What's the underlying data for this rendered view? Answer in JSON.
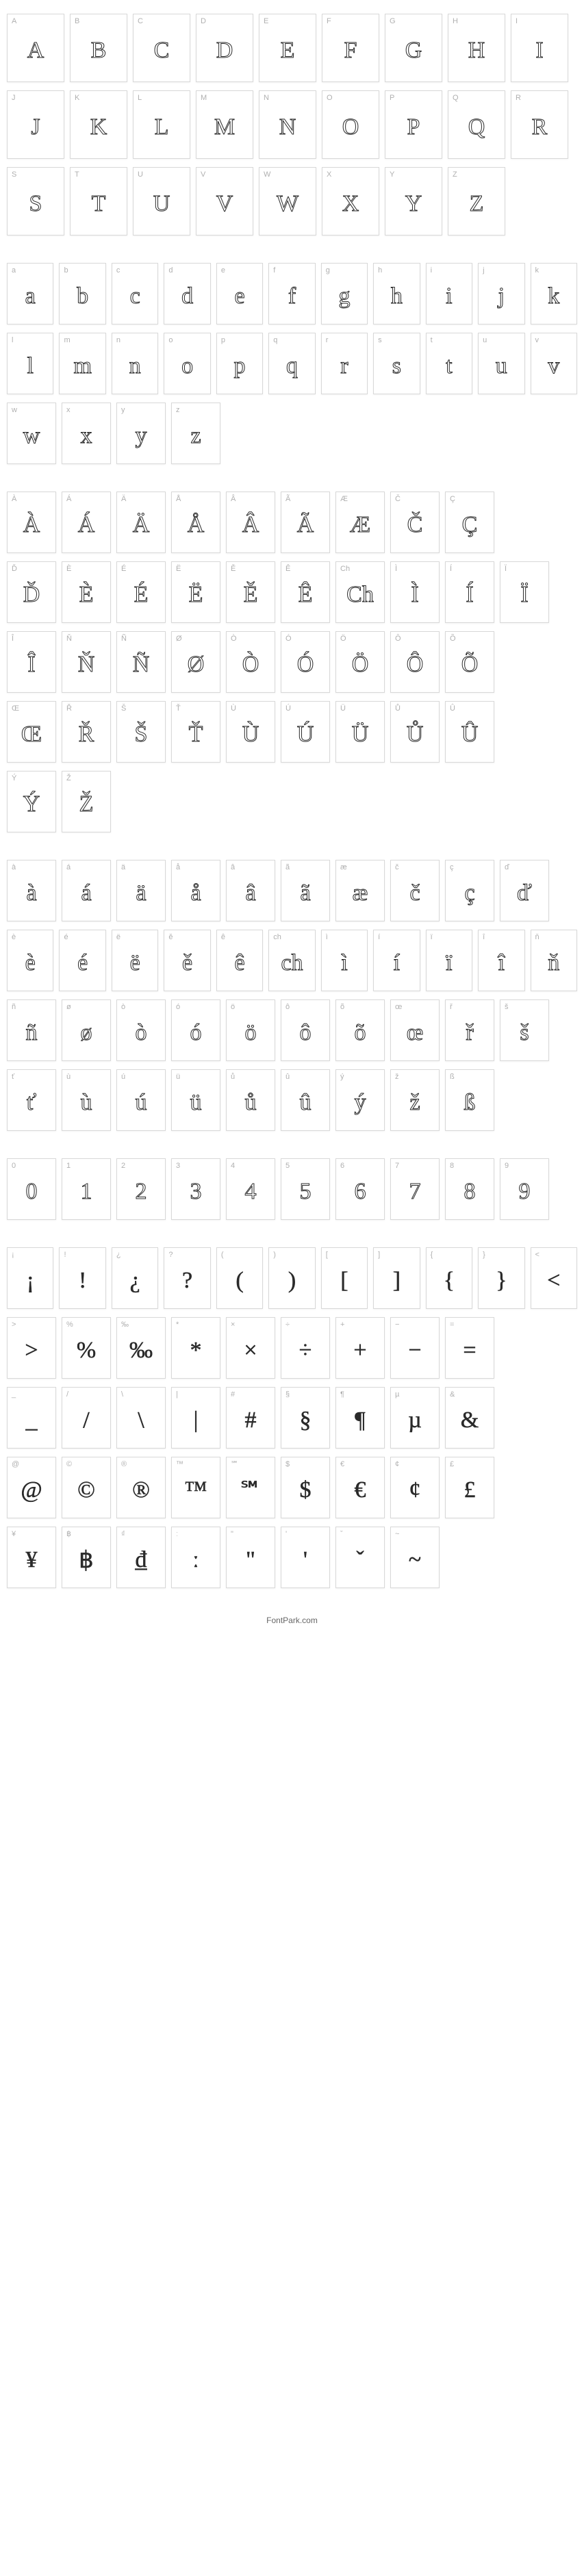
{
  "footer_text": "FontPark.com",
  "cell_styles": {
    "border_color": "#d8d8d8",
    "background_color": "#ffffff",
    "label_color": "#b0b0b0",
    "glyph_color": "#2a2a2a",
    "label_fontsize": 11,
    "glyph_fontsize": 34
  },
  "sections": [
    {
      "name": "uppercase",
      "cell_class": "w-large",
      "outlined": true,
      "rows": [
        [
          {
            "l": "A",
            "g": "A"
          },
          {
            "l": "B",
            "g": "B"
          },
          {
            "l": "C",
            "g": "C"
          },
          {
            "l": "D",
            "g": "D"
          },
          {
            "l": "E",
            "g": "E"
          },
          {
            "l": "F",
            "g": "F"
          },
          {
            "l": "G",
            "g": "G"
          },
          {
            "l": "H",
            "g": "H"
          },
          {
            "l": "I",
            "g": "I"
          }
        ],
        [
          {
            "l": "J",
            "g": "J"
          },
          {
            "l": "K",
            "g": "K"
          },
          {
            "l": "L",
            "g": "L"
          },
          {
            "l": "M",
            "g": "M"
          },
          {
            "l": "N",
            "g": "N"
          },
          {
            "l": "O",
            "g": "O"
          },
          {
            "l": "P",
            "g": "P"
          },
          {
            "l": "Q",
            "g": "Q"
          },
          {
            "l": "R",
            "g": "R"
          }
        ],
        [
          {
            "l": "S",
            "g": "S"
          },
          {
            "l": "T",
            "g": "T"
          },
          {
            "l": "U",
            "g": "U"
          },
          {
            "l": "V",
            "g": "V"
          },
          {
            "l": "W",
            "g": "W"
          },
          {
            "l": "X",
            "g": "X"
          },
          {
            "l": "Y",
            "g": "Y"
          },
          {
            "l": "Z",
            "g": "Z"
          }
        ]
      ]
    },
    {
      "name": "lowercase",
      "cell_class": "w-med",
      "outlined": true,
      "rows": [
        [
          {
            "l": "a",
            "g": "a"
          },
          {
            "l": "b",
            "g": "b"
          },
          {
            "l": "c",
            "g": "c"
          },
          {
            "l": "d",
            "g": "d"
          },
          {
            "l": "e",
            "g": "e"
          },
          {
            "l": "f",
            "g": "f"
          },
          {
            "l": "g",
            "g": "g"
          },
          {
            "l": "h",
            "g": "h"
          },
          {
            "l": "i",
            "g": "i"
          },
          {
            "l": "j",
            "g": "j"
          },
          {
            "l": "k",
            "g": "k"
          }
        ],
        [
          {
            "l": "l",
            "g": "l"
          },
          {
            "l": "m",
            "g": "m"
          },
          {
            "l": "n",
            "g": "n"
          },
          {
            "l": "o",
            "g": "o"
          },
          {
            "l": "p",
            "g": "p"
          },
          {
            "l": "q",
            "g": "q"
          },
          {
            "l": "r",
            "g": "r"
          },
          {
            "l": "s",
            "g": "s"
          },
          {
            "l": "t",
            "g": "t"
          },
          {
            "l": "u",
            "g": "u"
          },
          {
            "l": "v",
            "g": "v"
          }
        ],
        [
          {
            "l": "w",
            "g": "w"
          },
          {
            "l": "x",
            "g": "x"
          },
          {
            "l": "y",
            "g": "y"
          },
          {
            "l": "z",
            "g": "z"
          }
        ]
      ]
    },
    {
      "name": "uppercase_accented",
      "cell_class": "w-med",
      "outlined": true,
      "rows": [
        [
          {
            "l": "À",
            "g": "À"
          },
          {
            "l": "Á",
            "g": "Á"
          },
          {
            "l": "Ä",
            "g": "Ä"
          },
          {
            "l": "Å",
            "g": "Å"
          },
          {
            "l": "Â",
            "g": "Â"
          },
          {
            "l": "Ã",
            "g": "Ã"
          },
          {
            "l": "Æ",
            "g": "Æ"
          },
          {
            "l": "Č",
            "g": "Č"
          },
          {
            "l": "Ç",
            "g": "Ç"
          }
        ],
        [
          {
            "l": "Ď",
            "g": "Ď"
          },
          {
            "l": "È",
            "g": "È"
          },
          {
            "l": "É",
            "g": "É"
          },
          {
            "l": "Ë",
            "g": "Ë"
          },
          {
            "l": "Ě",
            "g": "Ě"
          },
          {
            "l": "Ê",
            "g": "Ê"
          },
          {
            "l": "Ch",
            "g": "Ch"
          },
          {
            "l": "Ì",
            "g": "Ì"
          },
          {
            "l": "Í",
            "g": "Í"
          },
          {
            "l": "Ï",
            "g": "Ï"
          }
        ],
        [
          {
            "l": "Î",
            "g": "Î"
          },
          {
            "l": "Ň",
            "g": "Ň"
          },
          {
            "l": "Ñ",
            "g": "Ñ"
          },
          {
            "l": "Ø",
            "g": "Ø"
          },
          {
            "l": "Ò",
            "g": "Ò"
          },
          {
            "l": "Ó",
            "g": "Ó"
          },
          {
            "l": "Ö",
            "g": "Ö"
          },
          {
            "l": "Ô",
            "g": "Ô"
          },
          {
            "l": "Õ",
            "g": "Õ"
          }
        ],
        [
          {
            "l": "Œ",
            "g": "Œ"
          },
          {
            "l": "Ř",
            "g": "Ř"
          },
          {
            "l": "Š",
            "g": "Š"
          },
          {
            "l": "Ť",
            "g": "Ť"
          },
          {
            "l": "Ù",
            "g": "Ù"
          },
          {
            "l": "Ú",
            "g": "Ú"
          },
          {
            "l": "Ü",
            "g": "Ü"
          },
          {
            "l": "Ů",
            "g": "Ů"
          },
          {
            "l": "Û",
            "g": "Û"
          }
        ],
        [
          {
            "l": "Ý",
            "g": "Ý"
          },
          {
            "l": "Ž",
            "g": "Ž"
          }
        ]
      ]
    },
    {
      "name": "lowercase_accented",
      "cell_class": "w-med",
      "outlined": true,
      "rows": [
        [
          {
            "l": "à",
            "g": "à"
          },
          {
            "l": "á",
            "g": "á"
          },
          {
            "l": "ä",
            "g": "ä"
          },
          {
            "l": "å",
            "g": "å"
          },
          {
            "l": "â",
            "g": "â"
          },
          {
            "l": "ã",
            "g": "ã"
          },
          {
            "l": "æ",
            "g": "æ"
          },
          {
            "l": "č",
            "g": "č"
          },
          {
            "l": "ç",
            "g": "ç"
          },
          {
            "l": "ď",
            "g": "ď"
          }
        ],
        [
          {
            "l": "è",
            "g": "è"
          },
          {
            "l": "é",
            "g": "é"
          },
          {
            "l": "ë",
            "g": "ë"
          },
          {
            "l": "ě",
            "g": "ě"
          },
          {
            "l": "ê",
            "g": "ê"
          },
          {
            "l": "ch",
            "g": "ch"
          },
          {
            "l": "ì",
            "g": "ì"
          },
          {
            "l": "í",
            "g": "í"
          },
          {
            "l": "ï",
            "g": "ï"
          },
          {
            "l": "î",
            "g": "î"
          },
          {
            "l": "ň",
            "g": "ň"
          }
        ],
        [
          {
            "l": "ñ",
            "g": "ñ"
          },
          {
            "l": "ø",
            "g": "ø"
          },
          {
            "l": "ò",
            "g": "ò"
          },
          {
            "l": "ó",
            "g": "ó"
          },
          {
            "l": "ö",
            "g": "ö"
          },
          {
            "l": "ô",
            "g": "ô"
          },
          {
            "l": "õ",
            "g": "õ"
          },
          {
            "l": "œ",
            "g": "œ"
          },
          {
            "l": "ř",
            "g": "ř"
          },
          {
            "l": "š",
            "g": "š"
          }
        ],
        [
          {
            "l": "ť",
            "g": "ť"
          },
          {
            "l": "ù",
            "g": "ù"
          },
          {
            "l": "ú",
            "g": "ú"
          },
          {
            "l": "ü",
            "g": "ü"
          },
          {
            "l": "ů",
            "g": "ů"
          },
          {
            "l": "û",
            "g": "û"
          },
          {
            "l": "ý",
            "g": "ý"
          },
          {
            "l": "ž",
            "g": "ž"
          },
          {
            "l": "ß",
            "g": "ß"
          }
        ]
      ]
    },
    {
      "name": "numbers",
      "cell_class": "w-med",
      "outlined": true,
      "rows": [
        [
          {
            "l": "0",
            "g": "0"
          },
          {
            "l": "1",
            "g": "1"
          },
          {
            "l": "2",
            "g": "2"
          },
          {
            "l": "3",
            "g": "3"
          },
          {
            "l": "4",
            "g": "4"
          },
          {
            "l": "5",
            "g": "5"
          },
          {
            "l": "6",
            "g": "6"
          },
          {
            "l": "7",
            "g": "7"
          },
          {
            "l": "8",
            "g": "8"
          },
          {
            "l": "9",
            "g": "9"
          }
        ]
      ]
    },
    {
      "name": "symbols",
      "cell_class": "w-med",
      "outlined": false,
      "rows": [
        [
          {
            "l": "¡",
            "g": "¡"
          },
          {
            "l": "!",
            "g": "!"
          },
          {
            "l": "¿",
            "g": "¿"
          },
          {
            "l": "?",
            "g": "?"
          },
          {
            "l": "(",
            "g": "("
          },
          {
            "l": ")",
            "g": ")"
          },
          {
            "l": "[",
            "g": "["
          },
          {
            "l": "]",
            "g": "]"
          },
          {
            "l": "{",
            "g": "{"
          },
          {
            "l": "}",
            "g": "}"
          },
          {
            "l": "<",
            "g": "<"
          }
        ],
        [
          {
            "l": ">",
            "g": ">"
          },
          {
            "l": "%",
            "g": "%"
          },
          {
            "l": "‰",
            "g": "‰"
          },
          {
            "l": "*",
            "g": "*"
          },
          {
            "l": "×",
            "g": "×"
          },
          {
            "l": "÷",
            "g": "÷"
          },
          {
            "l": "+",
            "g": "+"
          },
          {
            "l": "−",
            "g": "−"
          },
          {
            "l": "=",
            "g": "="
          }
        ],
        [
          {
            "l": "_",
            "g": "_"
          },
          {
            "l": "/",
            "g": "/"
          },
          {
            "l": "\\",
            "g": "\\"
          },
          {
            "l": "|",
            "g": "|"
          },
          {
            "l": "#",
            "g": "#"
          },
          {
            "l": "§",
            "g": "§"
          },
          {
            "l": "¶",
            "g": "¶"
          },
          {
            "l": "µ",
            "g": "µ"
          },
          {
            "l": "&",
            "g": "&"
          }
        ],
        [
          {
            "l": "@",
            "g": "@"
          },
          {
            "l": "©",
            "g": "©"
          },
          {
            "l": "®",
            "g": "®"
          },
          {
            "l": "™",
            "g": "™"
          },
          {
            "l": "℠",
            "g": "℠"
          },
          {
            "l": "$",
            "g": "$"
          },
          {
            "l": "€",
            "g": "€"
          },
          {
            "l": "¢",
            "g": "¢"
          },
          {
            "l": "£",
            "g": "£"
          }
        ],
        [
          {
            "l": "¥",
            "g": "¥"
          },
          {
            "l": "฿",
            "g": "฿"
          },
          {
            "l": "₫",
            "g": "₫"
          },
          {
            "l": "ː",
            "g": "ː"
          },
          {
            "l": "\"",
            "g": "\""
          },
          {
            "l": "'",
            "g": "'"
          },
          {
            "l": "ˇ",
            "g": "ˇ"
          },
          {
            "l": "~",
            "g": "~"
          }
        ]
      ]
    }
  ]
}
